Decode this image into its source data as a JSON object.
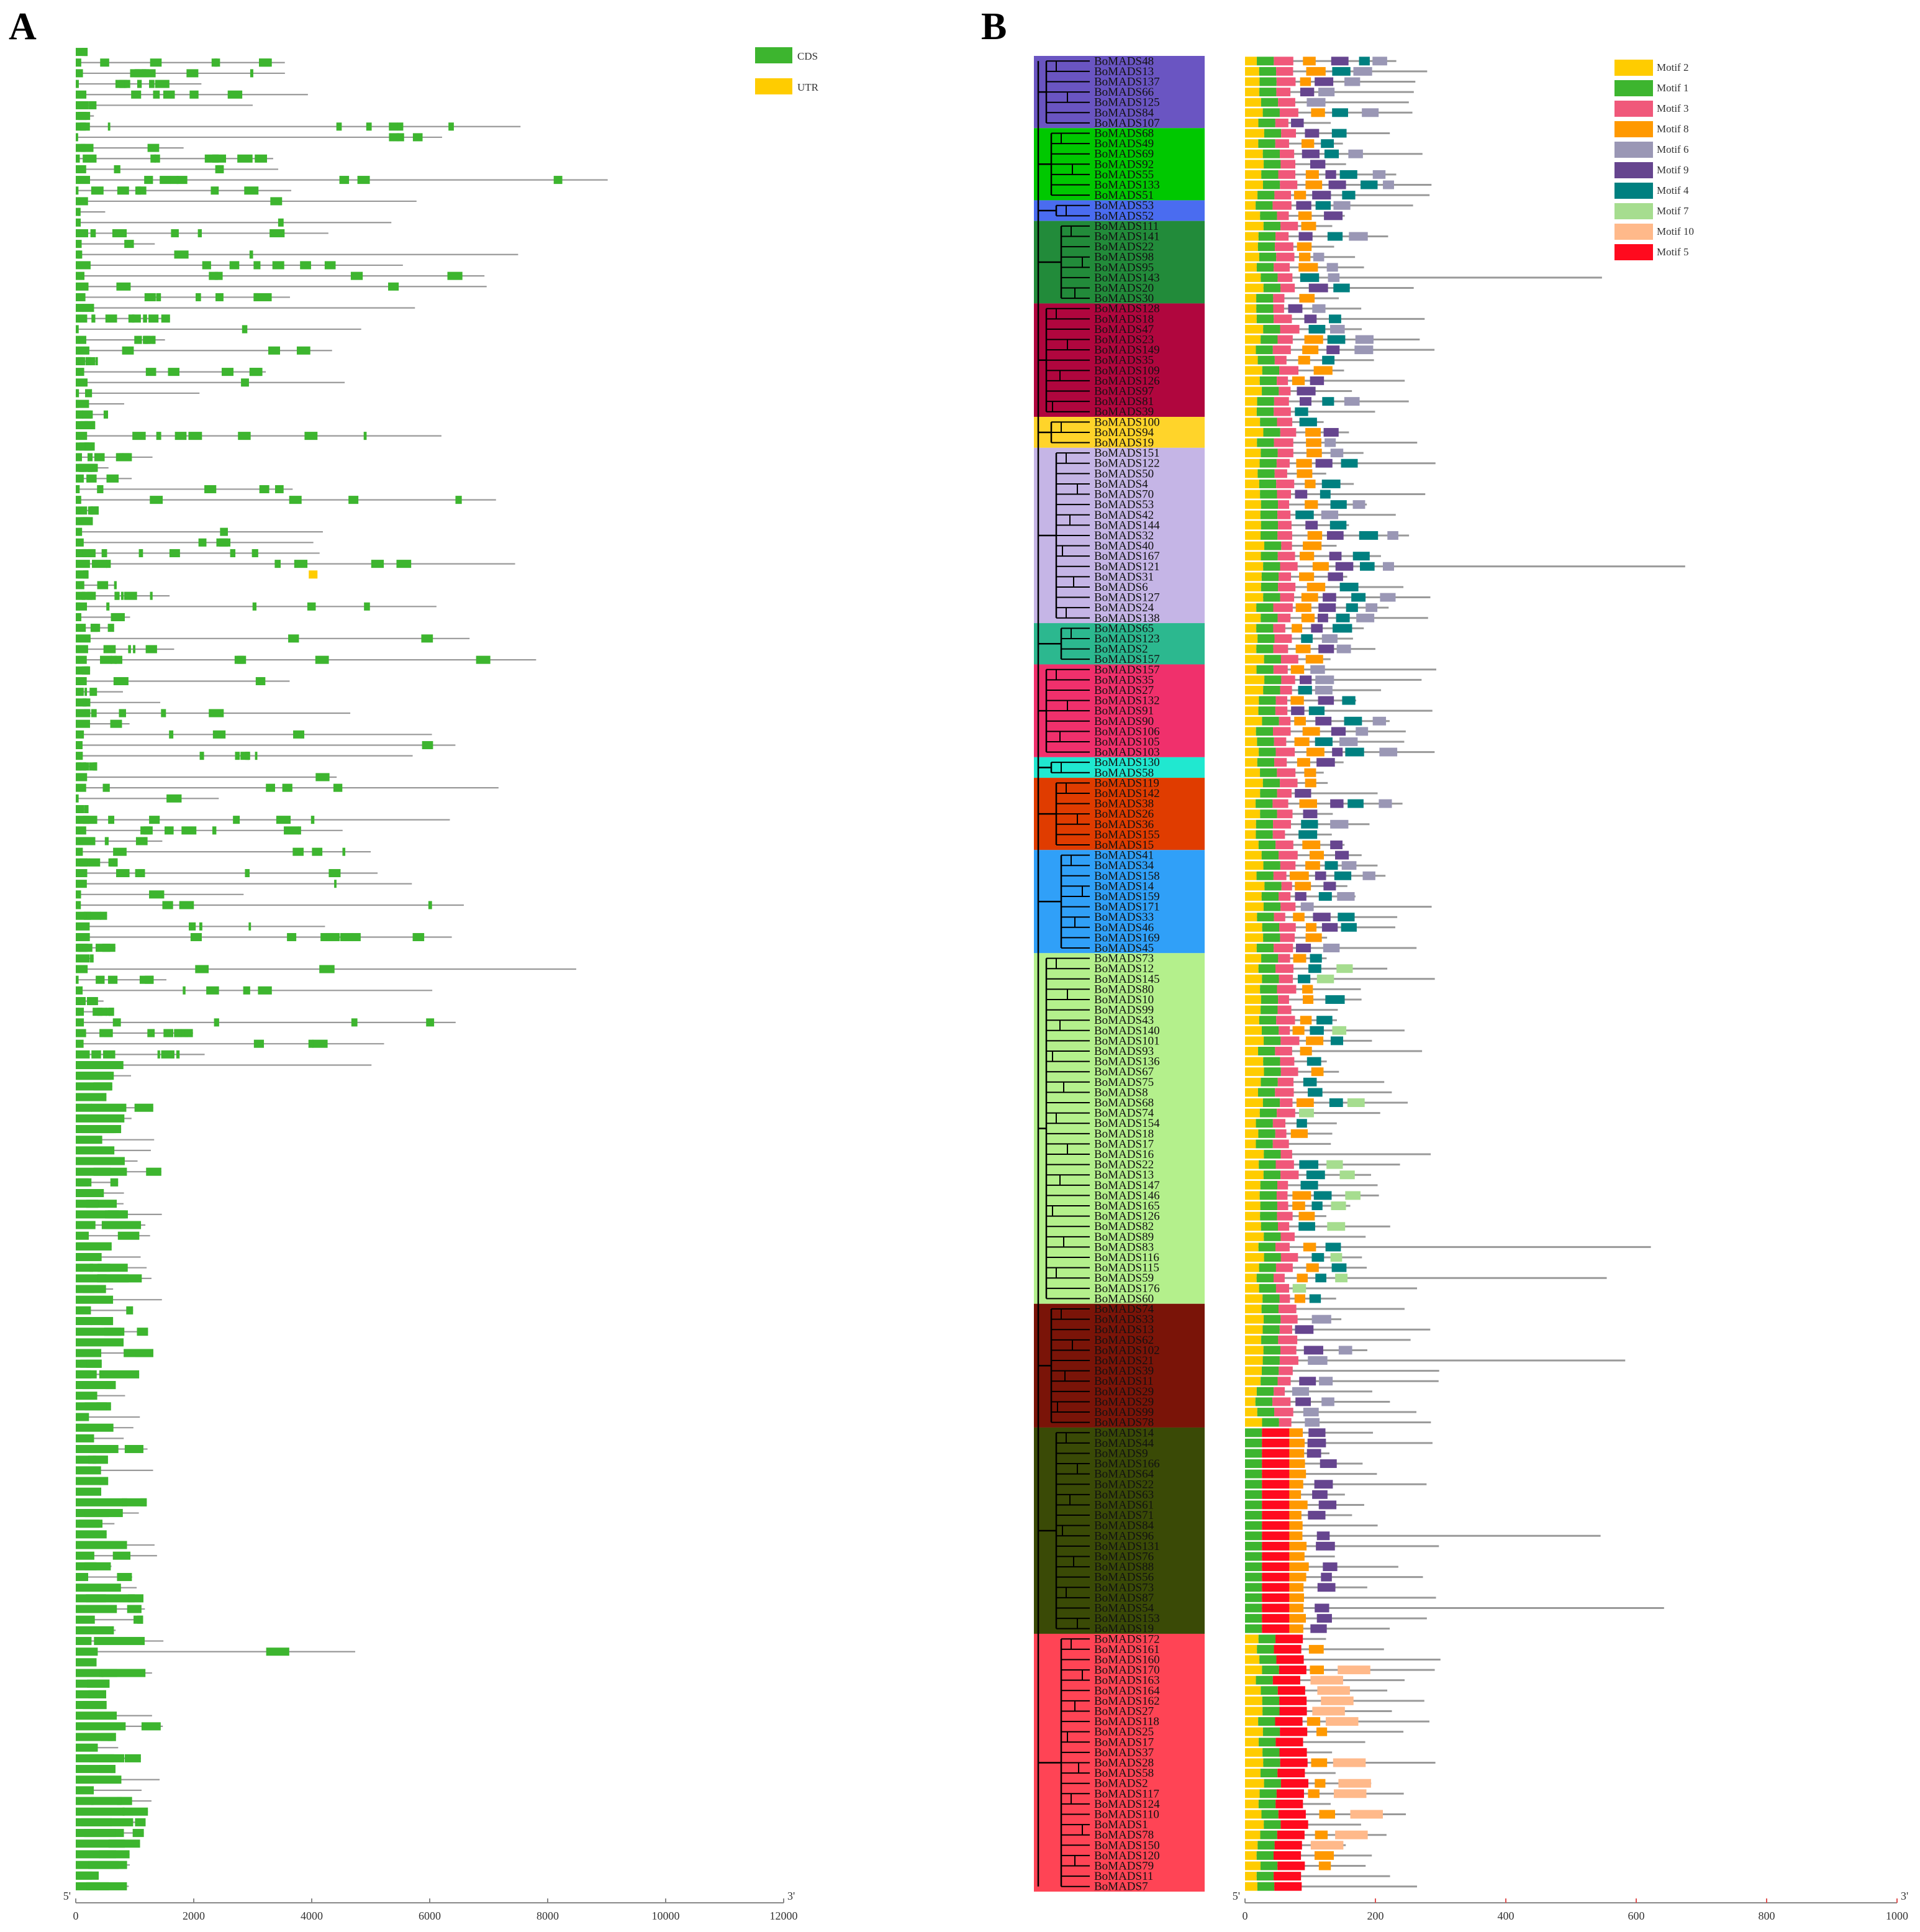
{
  "panels": {
    "a_label": "A",
    "b_label": "B"
  },
  "chart_data": [
    {
      "type": "gene-structure",
      "panel": "A",
      "title": "",
      "xlabel": "",
      "xlim": [
        0,
        12000
      ],
      "x_ticks": [
        0,
        2000,
        4000,
        6000,
        8000,
        10000,
        12000
      ],
      "end_labels": {
        "left": "5'",
        "right": "3'"
      },
      "legend": [
        {
          "name": "CDS",
          "color": "#3db52f"
        },
        {
          "name": "UTR",
          "color": "#ffcc00"
        }
      ],
      "gene_count": 173
    },
    {
      "type": "motif-structure",
      "panel": "B",
      "xlim": [
        0,
        1000
      ],
      "x_ticks": [
        0,
        200,
        400,
        600,
        800,
        1000
      ],
      "end_labels": {
        "left": "5'",
        "right": "3'"
      },
      "legend": [
        {
          "name": "Motif 2",
          "color": "#ffcc00"
        },
        {
          "name": "Motif 1",
          "color": "#3db52f"
        },
        {
          "name": "Motif 3",
          "color": "#f0587a"
        },
        {
          "name": "Motif 8",
          "color": "#ff9900"
        },
        {
          "name": "Motif 6",
          "color": "#9a97b5"
        },
        {
          "name": "Motif 9",
          "color": "#66458f"
        },
        {
          "name": "Motif 4",
          "color": "#008080"
        },
        {
          "name": "Motif 7",
          "color": "#a6dd8f"
        },
        {
          "name": "Motif 10",
          "color": "#ffb98a"
        },
        {
          "name": "Motif 5",
          "color": "#ff0a1e"
        }
      ],
      "clades": [
        {
          "color": "#6a55c2",
          "labels": [
            "BoMADS48",
            "BoMADS13",
            "BoMADS137",
            "BoMADS66",
            "BoMADS125",
            "BoMADS84",
            "BoMADS107"
          ]
        },
        {
          "color": "#00c800",
          "labels": [
            "BoMADS68",
            "BoMADS49",
            "BoMADS69",
            "BoMADS92",
            "BoMADS55",
            "BoMADS133",
            "BoMADS51"
          ]
        },
        {
          "color": "#4a6cf0",
          "labels": [
            "BoMADS53",
            "BoMADS52"
          ]
        },
        {
          "color": "#228b3a",
          "labels": [
            "BoMADS111",
            "BoMADS141",
            "BoMADS22",
            "BoMADS98",
            "BoMADS95",
            "BoMADS143",
            "BoMADS20",
            "BoMADS30"
          ]
        },
        {
          "color": "#b0063e",
          "labels": [
            "BoMADS128",
            "BoMADS18",
            "BoMADS47",
            "BoMADS23",
            "BoMADS149",
            "BoMADS35",
            "BoMADS109",
            "BoMADS126",
            "BoMADS97",
            "BoMADS81",
            "BoMADS39"
          ]
        },
        {
          "color": "#ffd42a",
          "labels": [
            "BoMADS100",
            "BoMADS94",
            "BoMADS19"
          ]
        },
        {
          "color": "#c5b5e6",
          "labels": [
            "BoMADS151",
            "BoMADS122",
            "BoMADS50",
            "BoMADS4",
            "BoMADS70",
            "BoMADS53",
            "BoMADS42",
            "BoMADS144",
            "BoMADS32",
            "BoMADS40",
            "BoMADS167",
            "BoMADS121",
            "BoMADS31",
            "BoMADS6",
            "BoMADS127",
            "BoMADS24",
            "BoMADS138"
          ]
        },
        {
          "color": "#2cb88f",
          "labels": [
            "BoMADS65",
            "BoMADS123",
            "BoMADS2",
            "BoMADS157"
          ]
        },
        {
          "color": "#f0306c",
          "labels": [
            "BoMADS157",
            "BoMADS35",
            "BoMADS27",
            "BoMADS132",
            "BoMADS91",
            "BoMADS90",
            "BoMADS106",
            "BoMADS105",
            "BoMADS103"
          ]
        },
        {
          "color": "#20e8d0",
          "labels": [
            "BoMADS130",
            "BoMADS58"
          ]
        },
        {
          "color": "#e03c00",
          "labels": [
            "BoMADS119",
            "BoMADS142",
            "BoMADS38",
            "BoMADS26",
            "BoMADS36",
            "BoMADS155",
            "BoMADS15"
          ]
        },
        {
          "color": "#30a0f8",
          "labels": [
            "BoMADS41",
            "BoMADS34",
            "BoMADS158",
            "BoMADS14",
            "BoMADS159",
            "BoMADS171",
            "BoMADS33",
            "BoMADS46",
            "BoMADS169",
            "BoMADS45"
          ]
        },
        {
          "color": "#b4f08c",
          "labels": [
            "BoMADS73",
            "BoMADS12",
            "BoMADS145",
            "BoMADS80",
            "BoMADS10",
            "BoMADS99",
            "BoMADS43",
            "BoMADS140",
            "BoMADS101",
            "BoMADS93",
            "BoMADS136",
            "BoMADS67",
            "BoMADS75",
            "BoMADS8",
            "BoMADS68",
            "BoMADS74",
            "BoMADS154",
            "BoMADS18",
            "BoMADS17",
            "BoMADS16",
            "BoMADS22",
            "BoMADS13",
            "BoMADS147",
            "BoMADS146",
            "BoMADS165",
            "BoMADS126",
            "BoMADS82",
            "BoMADS89",
            "BoMADS83",
            "BoMADS116",
            "BoMADS115",
            "BoMADS59",
            "BoMADS176",
            "BoMADS60"
          ]
        },
        {
          "color": "#7a1408",
          "labels": [
            "BoMADS74",
            "BoMADS33",
            "BoMADS13",
            "BoMADS62",
            "BoMADS102",
            "BoMADS21",
            "BoMADS39",
            "BoMADS11",
            "BoMADS29",
            "BoMADS29",
            "BoMADS99",
            "BoMADS78"
          ]
        },
        {
          "color": "#3a4a06",
          "labels": [
            "BoMADS14",
            "BoMADS44",
            "BoMADS9",
            "BoMADS166",
            "BoMADS64",
            "BoMADS22",
            "BoMADS63",
            "BoMADS61",
            "BoMADS71",
            "BoMADS84",
            "BoMADS96",
            "BoMADS131",
            "BoMADS76",
            "BoMADS88",
            "BoMADS56",
            "BoMADS73",
            "BoMADS87",
            "BoMADS54",
            "BoMADS153",
            "BoMADS19"
          ]
        },
        {
          "color": "#ff4455",
          "labels": [
            "BoMADS172",
            "BoMADS161",
            "BoMADS160",
            "BoMADS170",
            "BoMADS163",
            "BoMADS164",
            "BoMADS162",
            "BoMADS27",
            "BoMADS118",
            "BoMADS25",
            "BoMADS17",
            "BoMADS37",
            "BoMADS28",
            "BoMADS58",
            "BoMADS2",
            "BoMADS117",
            "BoMADS124",
            "BoMADS110",
            "BoMADS1",
            "BoMADS78",
            "BoMADS150",
            "BoMADS120",
            "BoMADS79",
            "BoMADS11",
            "BoMADS7"
          ]
        }
      ]
    }
  ]
}
